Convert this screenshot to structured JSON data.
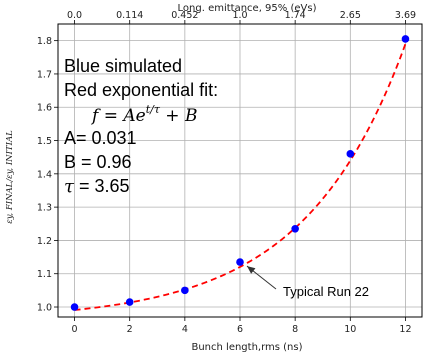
{
  "chart_data": {
    "type": "scatter",
    "xlabel": "Bunch length,rms (ns)",
    "ylabel": "εy, FINAL/εy, INITIAL",
    "xlim": [
      -0.6,
      12.6
    ],
    "ylim": [
      0.97,
      1.85
    ],
    "xticks": [
      0,
      2,
      4,
      6,
      8,
      10,
      12
    ],
    "xtick_labels": [
      "0",
      "2",
      "4",
      "6",
      "8",
      "10",
      "12"
    ],
    "yticks": [
      1.0,
      1.1,
      1.2,
      1.3,
      1.4,
      1.5,
      1.6,
      1.7,
      1.8
    ],
    "ytick_labels": [
      "1.0",
      "1.1",
      "1.2",
      "1.3",
      "1.4",
      "1.5",
      "1.6",
      "1.7",
      "1.8"
    ],
    "top_axis": {
      "label": "Long. emittance, 95% (eVs)",
      "ticks": [
        0,
        2,
        4,
        6,
        8,
        10,
        12
      ],
      "tick_labels": [
        "0.0",
        "0.114",
        "0.452",
        "1.0",
        "1.74",
        "2.65",
        "3.69"
      ]
    },
    "grid": true,
    "series": [
      {
        "name": "simulated",
        "kind": "scatter",
        "color": "#0000ff",
        "x": [
          0,
          2,
          4,
          6,
          8,
          10,
          12
        ],
        "y": [
          1.0,
          1.015,
          1.05,
          1.135,
          1.235,
          1.46,
          1.805
        ]
      },
      {
        "name": "exponential fit",
        "kind": "line",
        "style": "dashed",
        "color": "#ff0000",
        "function": "A*exp(x/tau)+B",
        "params": {
          "A": 0.031,
          "B": 0.96,
          "tau": 3.65
        }
      }
    ],
    "annotations": {
      "line1": "Blue simulated",
      "line2": "Red exponential fit:",
      "formula_f": "f = Ae",
      "formula_exp": "t/τ",
      "formula_rest": " + B",
      "param_a": "A= 0.031",
      "param_b": "B = 0.96",
      "param_tau_sym": "τ",
      "param_tau_val": " = 3.65",
      "callout": "Typical Run 22",
      "callout_target": {
        "x": 6,
        "y": 1.135
      }
    }
  }
}
